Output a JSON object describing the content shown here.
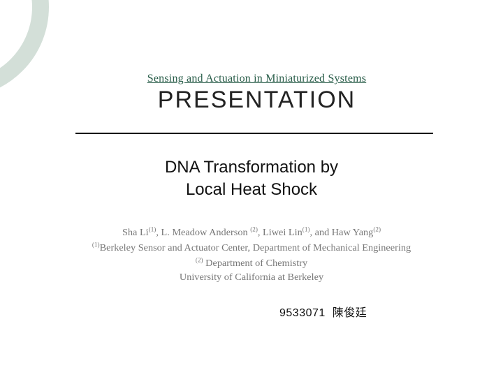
{
  "header": {
    "course": "Sensing and Actuation in Miniaturized Systems",
    "label": "PRESENTATION"
  },
  "main": {
    "title_line1": "DNA Transformation by",
    "title_line2": "Local Heat Shock"
  },
  "authors": {
    "line1_pre": "Sha Li",
    "sup1": "(1)",
    "line1_mid": ", L. Meadow Anderson ",
    "sup2": "(2)",
    "line1_mid2": ", Liwei Lin",
    "sup3": "(1)",
    "line1_mid3": ", and Haw Yang",
    "sup4": "(2)",
    "line2_sup": "(1)",
    "line2_text": "Berkeley Sensor and Actuator Center, Department of Mechanical Engineering",
    "line3_sup": "(2)",
    "line3_text": " Department of Chemistry",
    "line4": "University of California at Berkeley"
  },
  "student": {
    "id": "9533071",
    "name": "陳俊廷"
  },
  "style": {
    "arc_color": "#d3dfd8",
    "course_color": "#2a5e4a",
    "rule_color": "#000000",
    "authors_color": "#777777",
    "background": "#ffffff"
  }
}
